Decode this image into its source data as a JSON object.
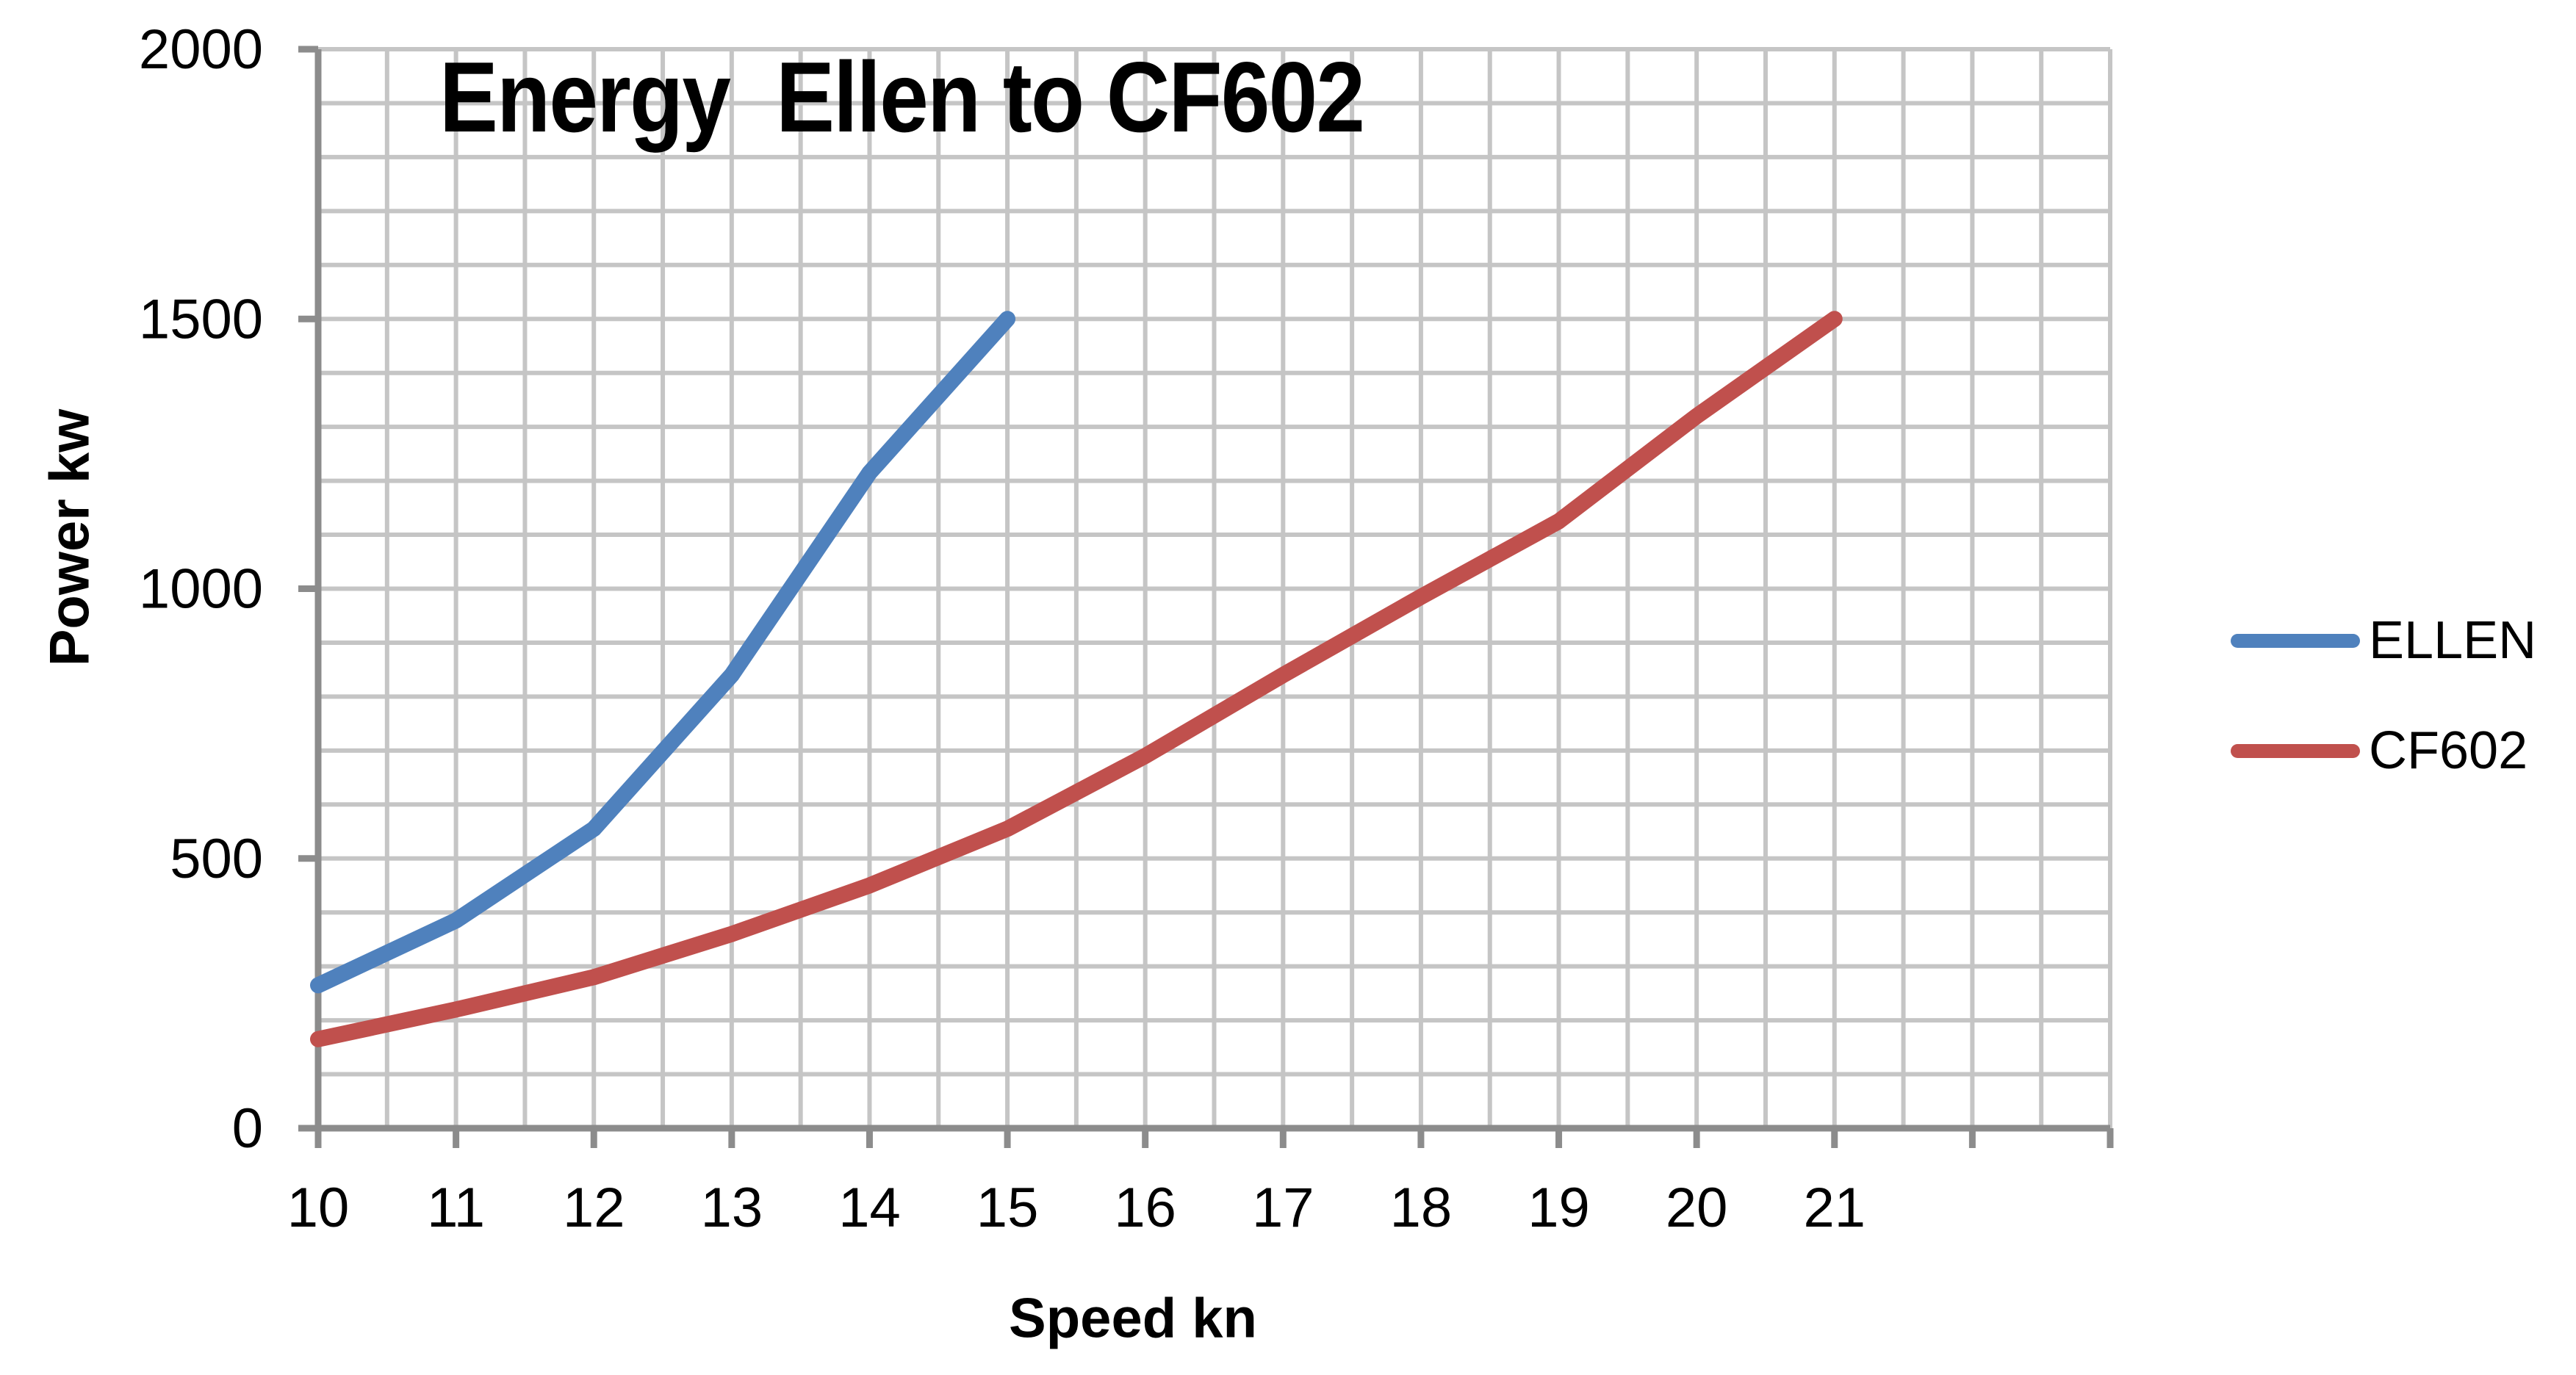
{
  "chart_data": {
    "type": "line",
    "title": "Energy  Ellen to CF602",
    "xlabel": "Speed kn",
    "ylabel": "Power kw",
    "x_range": [
      10,
      23
    ],
    "x_gridline_step": 0.5,
    "x_tick_step": 1,
    "x_tick_labels": [
      "10",
      "11",
      "12",
      "13",
      "14",
      "15",
      "16",
      "17",
      "18",
      "19",
      "20",
      "21"
    ],
    "x_tick_label_start": 10,
    "ylim": [
      0,
      2000
    ],
    "y_gridline_step": 100,
    "y_tick_step": 500,
    "y_tick_labels": [
      "0",
      "500",
      "1000",
      "1500",
      "2000"
    ],
    "grid": true,
    "legend_position": "right",
    "background_color": "#FFFFFF",
    "grid_color": "#C5C5C5",
    "axis_color": "#8C8C8C",
    "text_color": "#000000",
    "series": [
      {
        "name": "ELLEN",
        "color": "#4F81BD",
        "x": [
          10,
          11,
          12,
          13,
          14,
          15
        ],
        "values": [
          265,
          385,
          555,
          840,
          1215,
          1500
        ]
      },
      {
        "name": "CF602",
        "color": "#C0504D",
        "x": [
          10,
          11,
          12,
          13,
          14,
          15,
          16,
          17,
          18,
          19,
          20,
          21
        ],
        "values": [
          165,
          220,
          280,
          360,
          450,
          555,
          690,
          840,
          985,
          1125,
          1320,
          1500
        ]
      }
    ]
  }
}
